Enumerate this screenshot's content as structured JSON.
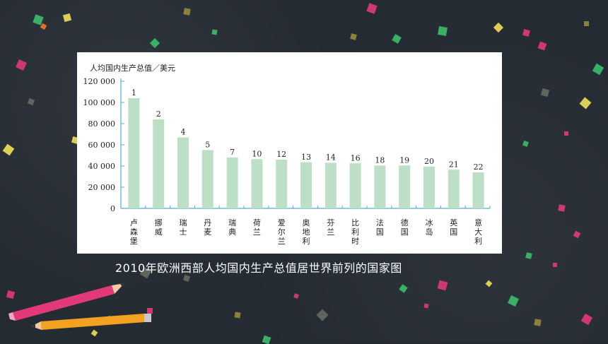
{
  "caption": "2010年欧洲西部人均国内生产总值居世界前列的国家图",
  "colors": {
    "bar": "#bcdfc5",
    "axis": "#4fb1d8",
    "background": "#252b33",
    "panel": "#ffffff"
  },
  "chart_data": {
    "type": "bar",
    "title": "",
    "ylabel": "人均国内生产总值／美元",
    "xlabel": "",
    "ylim": [
      0,
      120000
    ],
    "yticks": [
      0,
      20000,
      40000,
      60000,
      80000,
      100000,
      120000
    ],
    "ytick_labels": [
      "0",
      "20 000",
      "40 000",
      "60 000",
      "80 000",
      "100 000",
      "120 000"
    ],
    "grid": false,
    "categories": [
      "卢森堡",
      "挪威",
      "瑞士",
      "丹麦",
      "瑞典",
      "荷兰",
      "爱尔兰",
      "奥地利",
      "芬兰",
      "比利时",
      "法国",
      "德国",
      "冰岛",
      "英国",
      "意大利"
    ],
    "values": [
      104000,
      84000,
      67000,
      55000,
      48000,
      46500,
      46000,
      43500,
      43000,
      42500,
      40500,
      40500,
      39500,
      36500,
      34000
    ],
    "rank_labels": [
      "1",
      "2",
      "4",
      "5",
      "7",
      "10",
      "12",
      "13",
      "14",
      "16",
      "18",
      "19",
      "20",
      "21",
      "22"
    ]
  }
}
